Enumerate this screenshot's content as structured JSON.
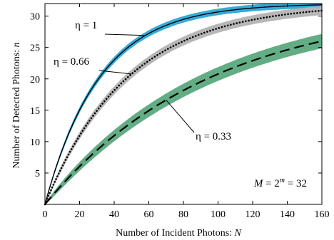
{
  "chart_data": {
    "type": "line",
    "title": "",
    "xlabel_prefix": "Number of Incident Photons: ",
    "xlabel_var": "N",
    "ylabel_prefix": "Number of Detected Photons: ",
    "ylabel_var": "n",
    "xlim": [
      0,
      160
    ],
    "ylim": [
      0,
      32
    ],
    "xticks": [
      0,
      20,
      40,
      60,
      80,
      100,
      120,
      140,
      160
    ],
    "yticks": [
      5,
      10,
      15,
      20,
      25,
      30
    ],
    "grid": false,
    "M": 32,
    "formula": {
      "M": "M",
      "eq1": " = 2",
      "exp": "m",
      "eq2": " = 32"
    },
    "series": [
      {
        "eta_label": "η = 1",
        "eta": 1.0,
        "color": "#2aa7d5",
        "line": "solid",
        "band_color": "#2aa7d5",
        "band_halfwidth_max": 0.65
      },
      {
        "eta_label": "η = 0.66",
        "eta": 0.66,
        "color": "#b3b3b3",
        "line": "dotted",
        "band_color": "#b3b3b3",
        "band_halfwidth_max": 0.9
      },
      {
        "eta_label": "η = 0.33",
        "eta": 0.33,
        "color": "#5aa97d",
        "line": "dashed",
        "band_color": "#5aa97d",
        "band_halfwidth_max": 1.45
      }
    ],
    "annotations": [
      {
        "text": "η = 1",
        "series": 0,
        "at_x": 58
      },
      {
        "text": "η = 0.66",
        "series": 1,
        "at_x": 50
      },
      {
        "text": "η = 0.33",
        "series": 2,
        "at_x": 70
      }
    ]
  }
}
